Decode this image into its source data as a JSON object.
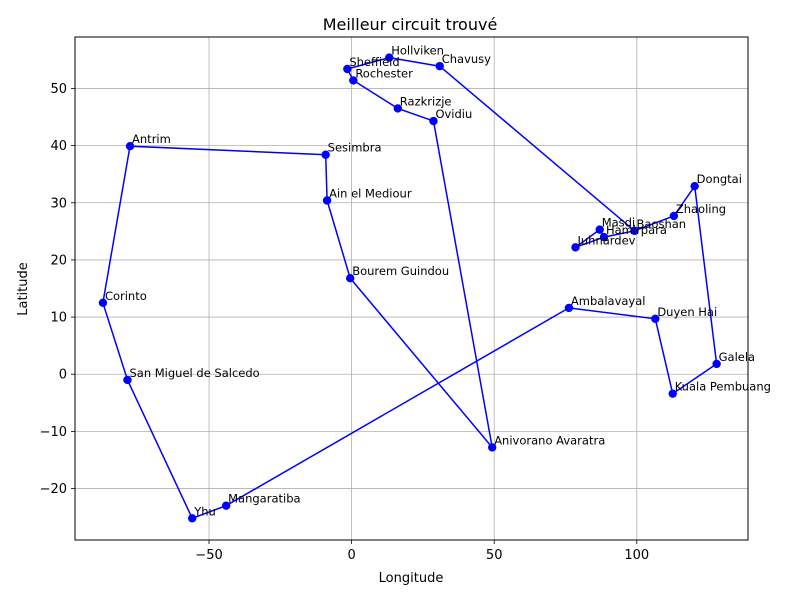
{
  "chart_data": {
    "type": "line",
    "title": "Meilleur circuit trouvé",
    "xlabel": "Longitude",
    "ylabel": "Latitude",
    "xlim": [
      -97,
      139
    ],
    "ylim": [
      -29,
      59
    ],
    "xticks": [
      -50,
      0,
      50,
      100
    ],
    "yticks": [
      -20,
      -10,
      0,
      10,
      20,
      30,
      40,
      50
    ],
    "grid": true,
    "line_color": "#0000ff",
    "marker_color": "#0000ff",
    "points": [
      {
        "name": "Hollviken",
        "x": 13.2,
        "y": 55.4
      },
      {
        "name": "Chavusy",
        "x": 30.9,
        "y": 53.9
      },
      {
        "name": "Baoshan",
        "x": 99.2,
        "y": 25.1
      },
      {
        "name": "Zhaoling",
        "x": 113.0,
        "y": 27.7
      },
      {
        "name": "Dongtai",
        "x": 120.3,
        "y": 32.9
      },
      {
        "name": "Galela",
        "x": 128.0,
        "y": 1.8
      },
      {
        "name": "Kuala Pembuang",
        "x": 112.6,
        "y": -3.4
      },
      {
        "name": "Duyen Hai",
        "x": 106.5,
        "y": 9.7
      },
      {
        "name": "Ambalavayal",
        "x": 76.2,
        "y": 11.6
      },
      {
        "name": "Mangaratiba",
        "x": -44.0,
        "y": -23.0
      },
      {
        "name": "Yhu",
        "x": -55.9,
        "y": -25.2
      },
      {
        "name": "San Miguel de Salcedo",
        "x": -78.6,
        "y": -1.0
      },
      {
        "name": "Corinto",
        "x": -87.2,
        "y": 12.5
      },
      {
        "name": "Antrim",
        "x": -77.7,
        "y": 39.9
      },
      {
        "name": "Sesimbra",
        "x": -9.1,
        "y": 38.4
      },
      {
        "name": "Ain el Mediour",
        "x": -8.6,
        "y": 30.4
      },
      {
        "name": "Bourem Guindou",
        "x": -0.5,
        "y": 16.8
      },
      {
        "name": "Anivorano Avaratra",
        "x": 49.3,
        "y": -12.8
      },
      {
        "name": "Ovidiu",
        "x": 28.7,
        "y": 44.3
      },
      {
        "name": "Razkrizje",
        "x": 16.2,
        "y": 46.5
      },
      {
        "name": "Rochester",
        "x": 0.6,
        "y": 51.4
      },
      {
        "name": "Sheffield",
        "x": -1.5,
        "y": 53.4
      },
      {
        "name": "Hollviken",
        "x": 13.2,
        "y": 55.4
      }
    ],
    "extra_points": [
      {
        "name": "Masdi",
        "x": 87.0,
        "y": 25.3
      },
      {
        "name": "Hamirpara",
        "x": 88.5,
        "y": 24.0
      },
      {
        "name": "Juhnardev",
        "x": 78.5,
        "y": 22.2
      }
    ],
    "tour_extra_order": [
      {
        "after": "Baoshan",
        "x": 88.5,
        "y": 24.0
      },
      {
        "after": "Baoshan",
        "x": 87.0,
        "y": 25.3
      },
      {
        "after": "Baoshan",
        "x": 78.5,
        "y": 22.2
      }
    ]
  }
}
